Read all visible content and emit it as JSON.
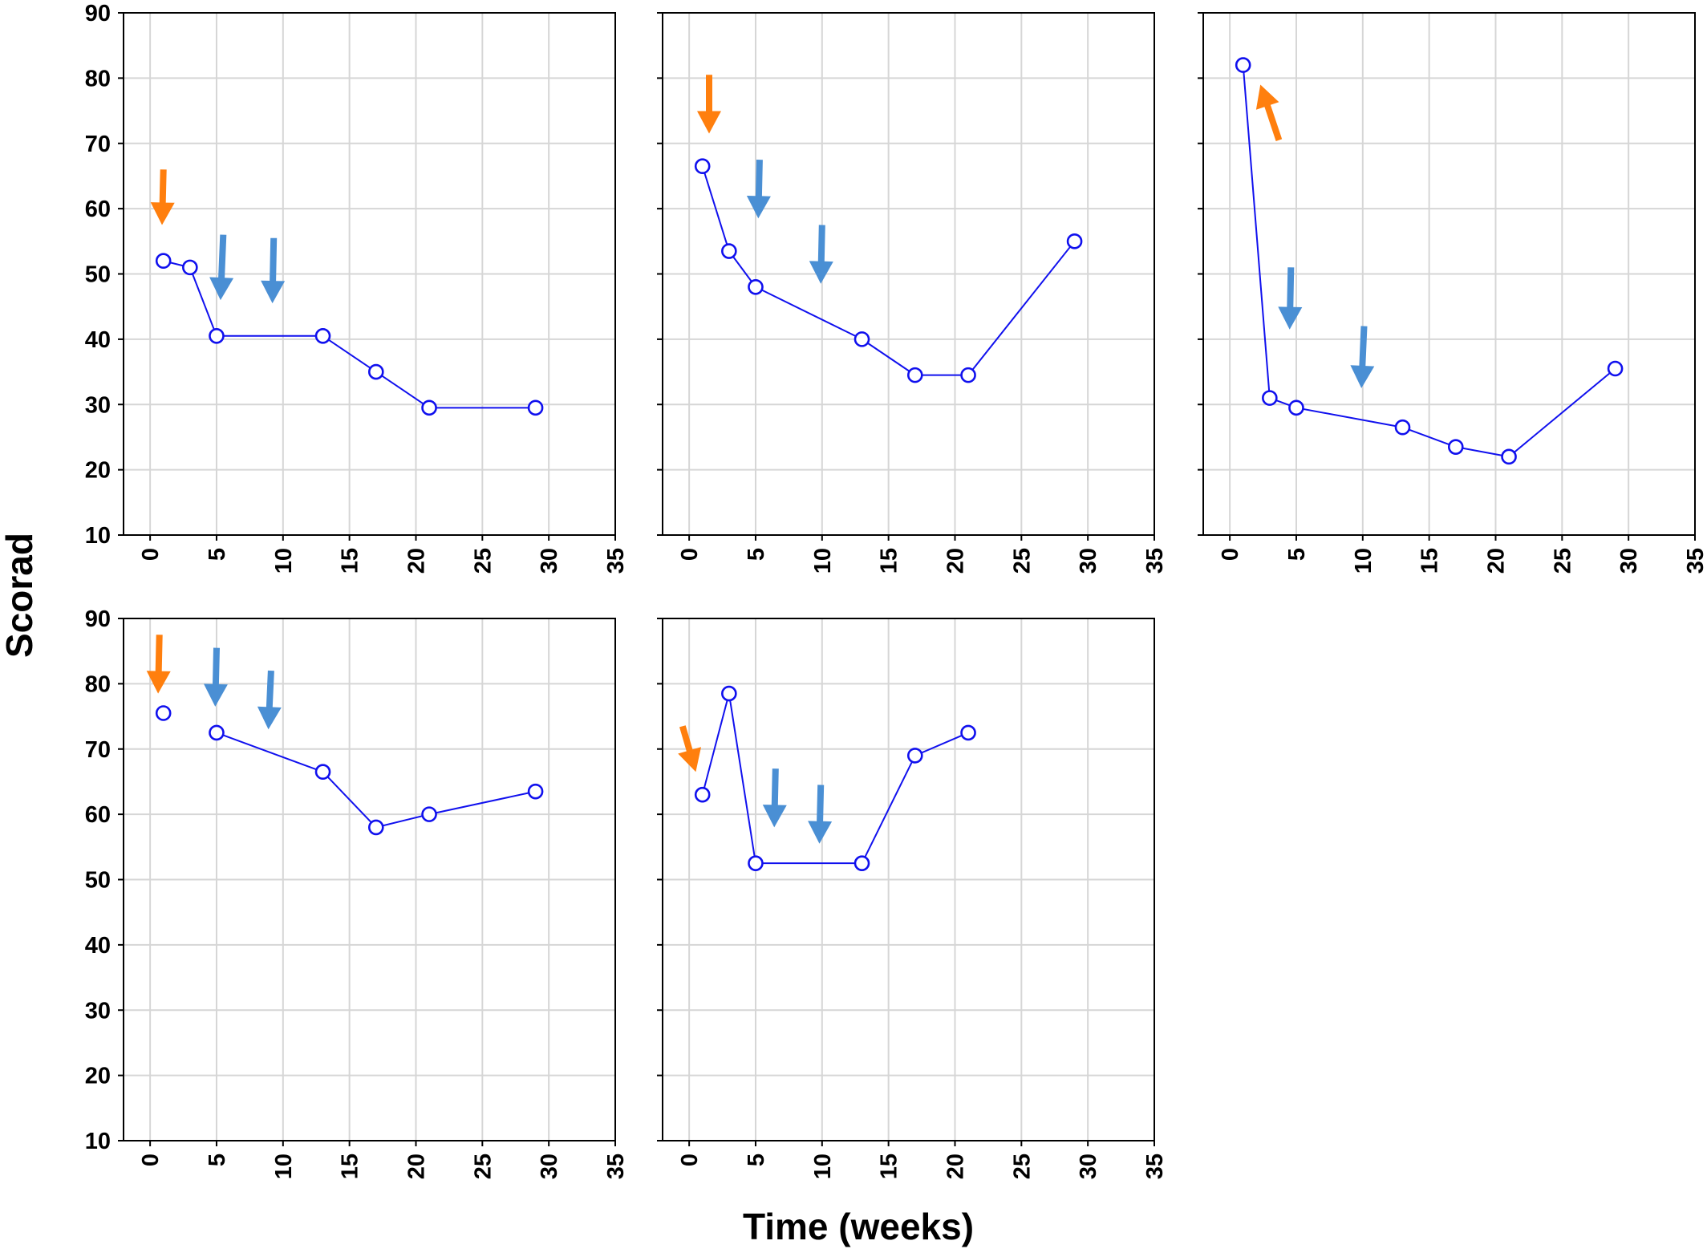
{
  "chart_data": {
    "type": "line",
    "layout": "small-multiples",
    "xlabel": "Time (weeks)",
    "ylabel": "Scorad",
    "xlim": [
      -2,
      35
    ],
    "ylim": [
      10,
      90
    ],
    "xticks": [
      0,
      5,
      10,
      15,
      20,
      25,
      30,
      35
    ],
    "yticks": [
      10,
      20,
      30,
      40,
      50,
      60,
      70,
      80,
      90
    ],
    "grid": true,
    "colors": {
      "series_line": "#1010ee",
      "marker_fill": "#ffffff",
      "arrow_orange": "#ff7f0e",
      "arrow_blue": "#4a8fd4",
      "grid": "#d6d6d6",
      "frame": "#000000"
    },
    "panels": [
      {
        "x": [
          1,
          3,
          5,
          13,
          17,
          21,
          29
        ],
        "y": [
          52,
          51,
          40.5,
          40.5,
          35,
          29.5,
          29.5
        ],
        "segments_broken_after": [],
        "arrows": [
          {
            "color": "orange",
            "x1": 1.0,
            "y1": 66,
            "x2": 0.9,
            "y2": 57.5
          },
          {
            "color": "blue",
            "x1": 5.5,
            "y1": 56,
            "x2": 5.3,
            "y2": 46
          },
          {
            "color": "blue",
            "x1": 9.3,
            "y1": 55.5,
            "x2": 9.2,
            "y2": 45.5
          }
        ]
      },
      {
        "x": [
          1,
          3,
          5,
          13,
          17,
          21,
          29
        ],
        "y": [
          66.5,
          53.5,
          48,
          40,
          34.5,
          34.5,
          55
        ],
        "segments_broken_after": [],
        "arrows": [
          {
            "color": "orange",
            "x1": 1.5,
            "y1": 80.5,
            "x2": 1.5,
            "y2": 71.5
          },
          {
            "color": "blue",
            "x1": 5.3,
            "y1": 67.5,
            "x2": 5.2,
            "y2": 58.5
          },
          {
            "color": "blue",
            "x1": 10.0,
            "y1": 57.5,
            "x2": 9.9,
            "y2": 48.5
          }
        ]
      },
      {
        "x": [
          1,
          3,
          5,
          13,
          17,
          21,
          29
        ],
        "y": [
          82,
          31,
          29.5,
          26.5,
          23.5,
          22,
          35.5
        ],
        "segments_broken_after": [],
        "arrows": [
          {
            "color": "orange",
            "x1": 3.7,
            "y1": 70.5,
            "x2": 2.3,
            "y2": 79
          },
          {
            "color": "blue",
            "x1": 4.6,
            "y1": 51,
            "x2": 4.5,
            "y2": 41.5
          },
          {
            "color": "blue",
            "x1": 10.1,
            "y1": 42,
            "x2": 9.9,
            "y2": 32.5
          }
        ]
      },
      {
        "x": [
          1,
          5,
          13,
          17,
          21,
          29
        ],
        "y": [
          75.5,
          72.5,
          66.5,
          58,
          60,
          63.5
        ],
        "segments_broken_after": [
          0
        ],
        "arrows": [
          {
            "color": "orange",
            "x1": 0.7,
            "y1": 87.5,
            "x2": 0.6,
            "y2": 78.5
          },
          {
            "color": "blue",
            "x1": 5.0,
            "y1": 85.5,
            "x2": 4.9,
            "y2": 76.5
          },
          {
            "color": "blue",
            "x1": 9.1,
            "y1": 82,
            "x2": 8.9,
            "y2": 73
          }
        ]
      },
      {
        "x": [
          1,
          3,
          5,
          13,
          17,
          21
        ],
        "y": [
          63,
          78.5,
          52.5,
          52.5,
          69,
          72.5
        ],
        "segments_broken_after": [],
        "arrows": [
          {
            "color": "orange",
            "x1": -0.5,
            "y1": 73.5,
            "x2": 0.5,
            "y2": 66.5
          },
          {
            "color": "blue",
            "x1": 6.5,
            "y1": 67,
            "x2": 6.4,
            "y2": 58
          },
          {
            "color": "blue",
            "x1": 9.9,
            "y1": 64.5,
            "x2": 9.8,
            "y2": 55.5
          }
        ]
      }
    ]
  }
}
